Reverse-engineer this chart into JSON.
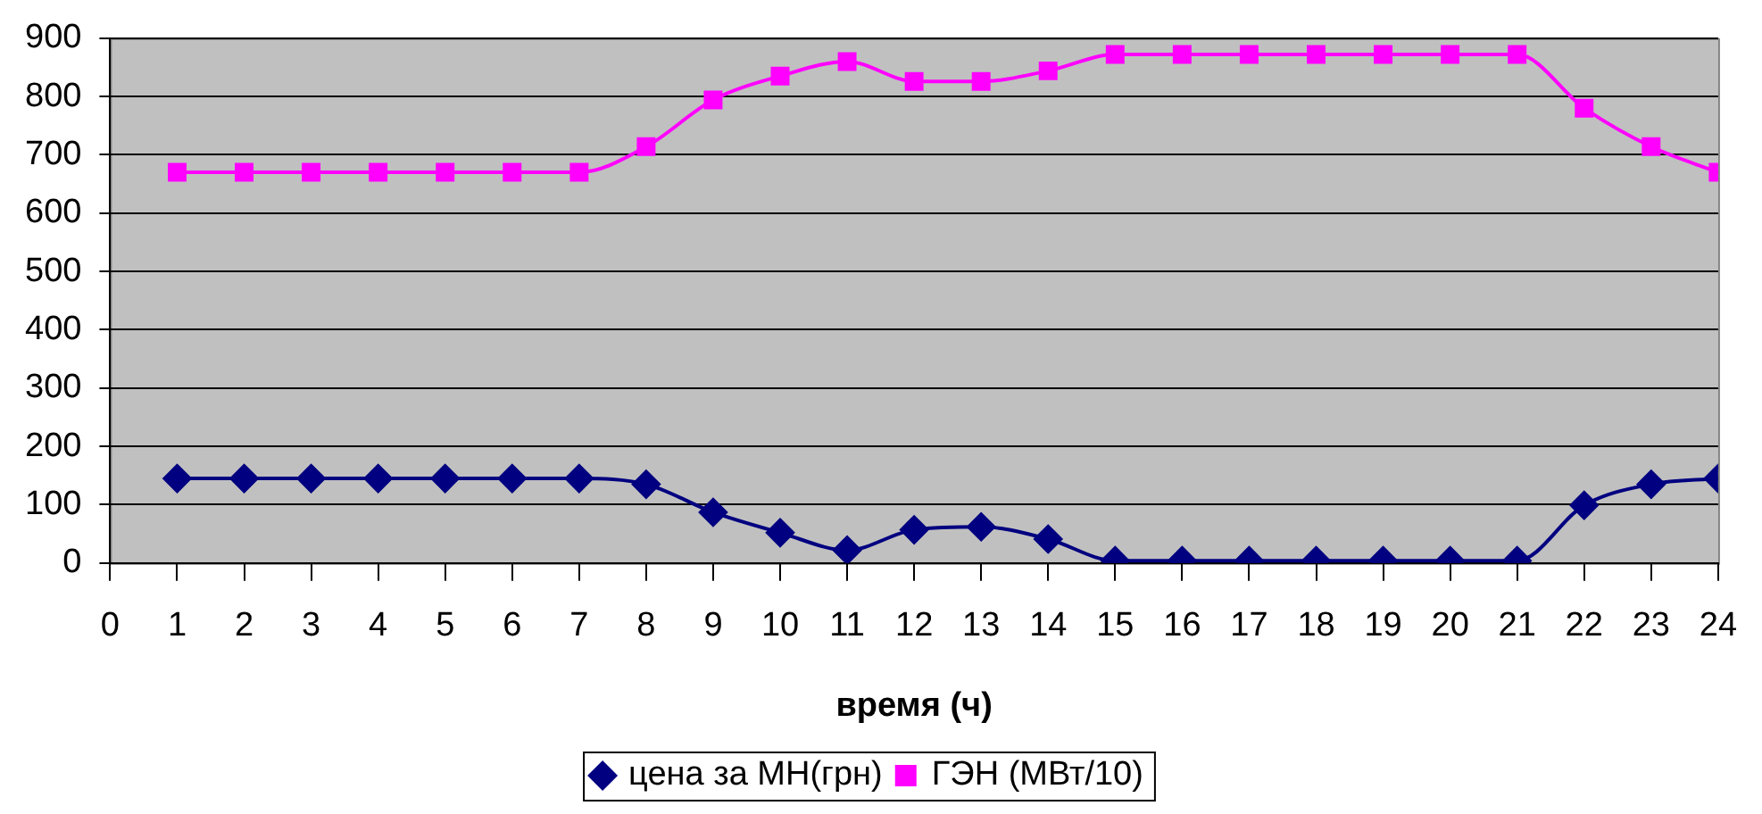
{
  "chart_data": {
    "type": "line",
    "xlabel": "время (ч)",
    "x": [
      1,
      2,
      3,
      4,
      5,
      6,
      7,
      8,
      9,
      10,
      11,
      12,
      13,
      14,
      15,
      16,
      17,
      18,
      19,
      20,
      21,
      22,
      23,
      24
    ],
    "series": [
      {
        "name": "цена за МН(грн)",
        "color": "#000080",
        "marker": "diamond",
        "values": [
          145,
          145,
          145,
          145,
          145,
          145,
          145,
          135,
          87,
          52,
          22,
          57,
          62,
          41,
          4,
          4,
          4,
          4,
          4,
          4,
          4,
          99,
          135,
          145
        ]
      },
      {
        "name": "ГЭН (МВт/10)",
        "color": "#ff00ff",
        "marker": "square",
        "values": [
          670,
          670,
          670,
          670,
          670,
          670,
          670,
          714,
          794,
          835,
          860,
          826,
          826,
          844,
          872,
          872,
          872,
          872,
          872,
          872,
          872,
          780,
          714,
          670
        ]
      }
    ],
    "xlim": [
      0,
      24
    ],
    "xticks": [
      0,
      1,
      2,
      3,
      4,
      5,
      6,
      7,
      8,
      9,
      10,
      11,
      12,
      13,
      14,
      15,
      16,
      17,
      18,
      19,
      20,
      21,
      22,
      23,
      24
    ],
    "ylim": [
      0,
      900
    ],
    "yticks": [
      0,
      100,
      200,
      300,
      400,
      500,
      600,
      700,
      800,
      900
    ],
    "grid": "y",
    "legend": "bottom",
    "line_style": "solid"
  }
}
